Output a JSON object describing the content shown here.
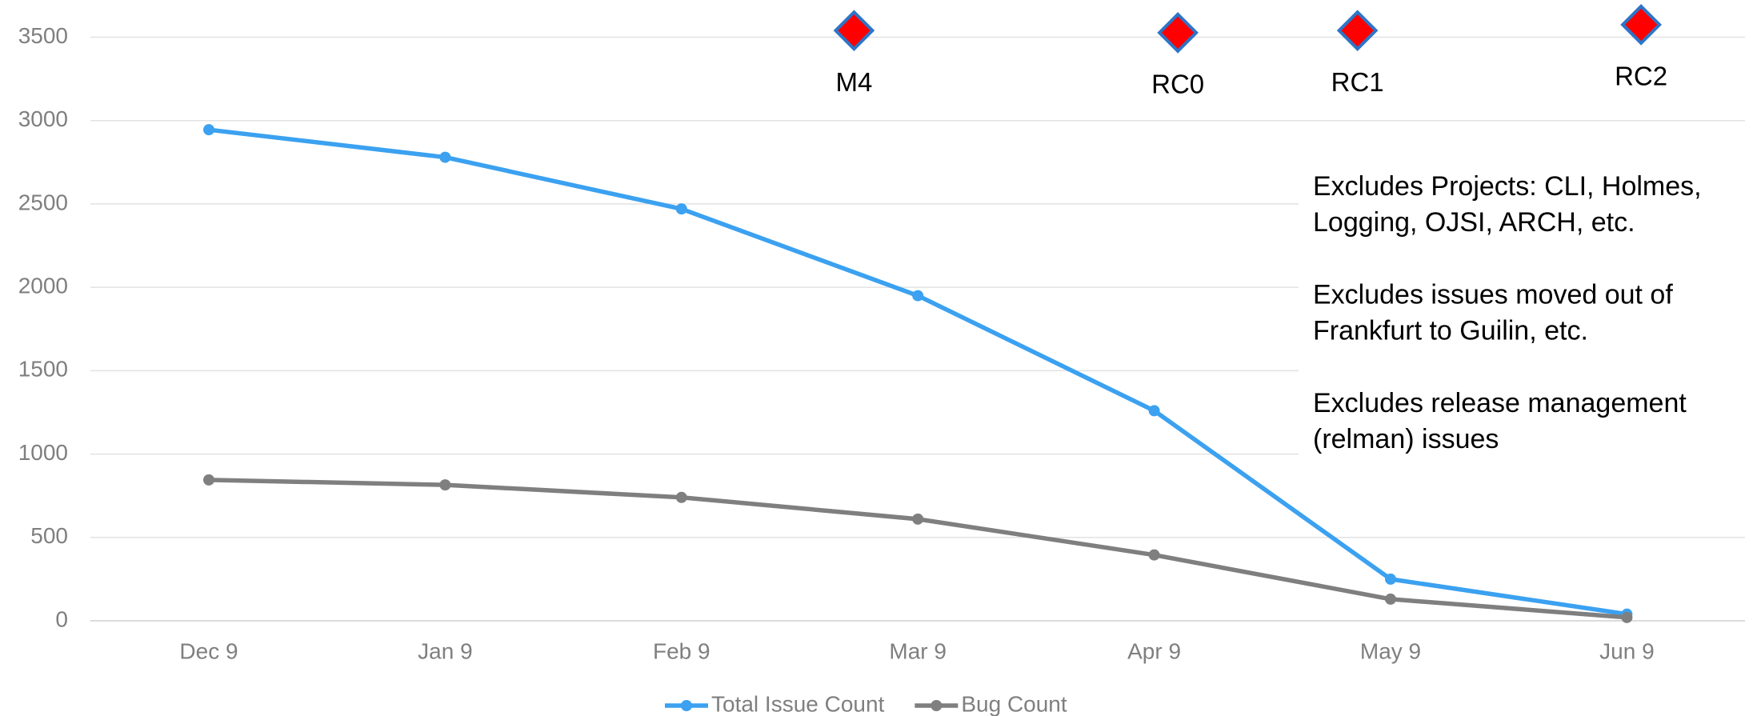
{
  "chart_data": {
    "type": "line",
    "categories": [
      "Dec 9",
      "Jan 9",
      "Feb 9",
      "Mar 9",
      "Apr 9",
      "May 9",
      "Jun 9"
    ],
    "series": [
      {
        "name": "Total Issue Count",
        "color": "#3ba1f0",
        "values": [
          2945,
          2780,
          2470,
          1950,
          1260,
          250,
          40
        ]
      },
      {
        "name": "Bug Count",
        "color": "#7f7f7f",
        "values": [
          845,
          815,
          740,
          610,
          395,
          130,
          20
        ]
      }
    ],
    "milestones": {
      "color": "#ff0000",
      "edge": "#2e75c8",
      "labels": [
        "M4",
        "RC0",
        "RC1",
        "RC2"
      ],
      "x": [
        2.73,
        4.1,
        4.86,
        6.06
      ],
      "values": [
        3540,
        3527,
        3540,
        3575
      ]
    },
    "notes": [
      [
        "Excludes Projects:  CLI, Holmes,",
        "Logging, OJSI, ARCH, etc."
      ],
      [
        "Excludes issues moved out of",
        "Frankfurt to Guilin, etc."
      ],
      [
        "Excludes release management",
        "(relman) issues"
      ]
    ],
    "ylim": [
      0,
      3500
    ],
    "yticks": [
      0,
      500,
      1000,
      1500,
      2000,
      2500,
      3000,
      3500
    ],
    "grid": true,
    "legend": "bottom"
  }
}
